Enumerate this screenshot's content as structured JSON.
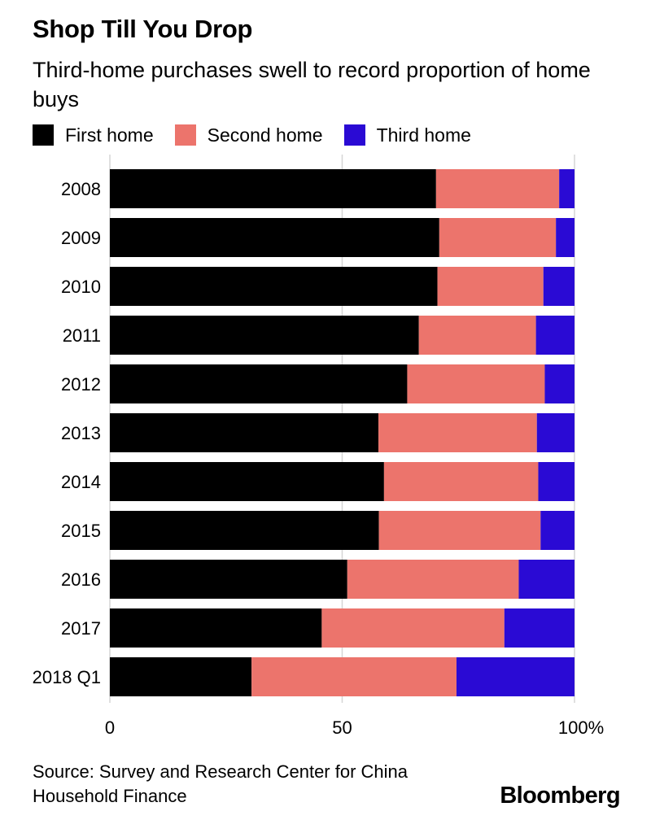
{
  "header": {
    "title": "Shop Till You Drop",
    "subtitle": "Third-home purchases swell to record proportion of home buys"
  },
  "legend": [
    {
      "label": "First home",
      "color": "#000000"
    },
    {
      "label": "Second home",
      "color": "#ec746c"
    },
    {
      "label": "Third home",
      "color": "#2a0ad4"
    }
  ],
  "footer": {
    "source": "Source: Survey and Research Center for China Household Finance",
    "brand": "Bloomberg"
  },
  "chart_data": {
    "type": "bar",
    "orientation": "horizontal",
    "stacked": true,
    "categories": [
      "2008",
      "2009",
      "2010",
      "2011",
      "2012",
      "2013",
      "2014",
      "2015",
      "2016",
      "2017",
      "2018 Q1"
    ],
    "series": [
      {
        "name": "First home",
        "color": "#000000",
        "values": [
          70.2,
          70.9,
          70.5,
          66.5,
          64.0,
          57.8,
          59.0,
          57.9,
          51.1,
          45.6,
          30.5
        ]
      },
      {
        "name": "Second home",
        "color": "#ec746c",
        "values": [
          26.5,
          25.1,
          22.8,
          25.2,
          29.6,
          34.1,
          33.2,
          34.8,
          36.9,
          39.3,
          44.1
        ]
      },
      {
        "name": "Third home",
        "color": "#2a0ad4",
        "values": [
          3.3,
          4.0,
          6.7,
          8.3,
          6.4,
          8.1,
          7.8,
          7.3,
          12.0,
          15.1,
          25.4
        ]
      }
    ],
    "xticks": [
      {
        "value": 0,
        "label": "0"
      },
      {
        "value": 50,
        "label": "50"
      },
      {
        "value": 100,
        "label": "100%"
      }
    ],
    "xlim": [
      0,
      100
    ],
    "grid": true,
    "legend_position": "top-left"
  }
}
